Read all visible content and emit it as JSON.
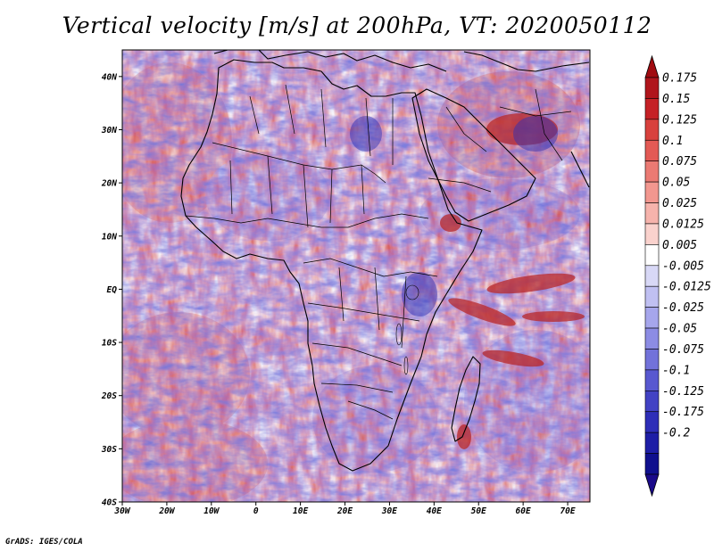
{
  "title": "Vertical velocity [m/s] at 200hPa, VT: 2020050112",
  "credit": "GrADS: IGES/COLA",
  "map": {
    "variable": "Vertical velocity",
    "units": "m/s",
    "level": "200hPa",
    "valid_time": "2020050112",
    "lon_range": [
      -30,
      75
    ],
    "lat_range": [
      -40,
      45
    ],
    "x_ticks": [
      {
        "lon": -30,
        "label": "30W"
      },
      {
        "lon": -20,
        "label": "20W"
      },
      {
        "lon": -10,
        "label": "10W"
      },
      {
        "lon": 0,
        "label": "0"
      },
      {
        "lon": 10,
        "label": "10E"
      },
      {
        "lon": 20,
        "label": "20E"
      },
      {
        "lon": 30,
        "label": "30E"
      },
      {
        "lon": 40,
        "label": "40E"
      },
      {
        "lon": 50,
        "label": "50E"
      },
      {
        "lon": 60,
        "label": "60E"
      },
      {
        "lon": 70,
        "label": "70E"
      }
    ],
    "y_ticks": [
      {
        "lat": 40,
        "label": "40N"
      },
      {
        "lat": 30,
        "label": "30N"
      },
      {
        "lat": 20,
        "label": "20N"
      },
      {
        "lat": 10,
        "label": "10N"
      },
      {
        "lat": 0,
        "label": "EQ"
      },
      {
        "lat": -10,
        "label": "10S"
      },
      {
        "lat": -20,
        "label": "20S"
      },
      {
        "lat": -30,
        "label": "30S"
      },
      {
        "lat": -40,
        "label": "40S"
      }
    ]
  },
  "colorbar": {
    "labels": [
      "0.175",
      "0.15",
      "0.125",
      "0.1",
      "0.075",
      "0.05",
      "0.025",
      "0.0125",
      "0.005",
      "-0.005",
      "-0.0125",
      "-0.025",
      "-0.05",
      "-0.075",
      "-0.1",
      "-0.125",
      "-0.175",
      "-0.2"
    ],
    "colors": [
      "#b0151c",
      "#c52126",
      "#d8413d",
      "#e35a55",
      "#eb7a73",
      "#f2978f",
      "#f6b3ac",
      "#fad2cd",
      "#ffffff",
      "#d8d8f6",
      "#c0c0f2",
      "#a6a6ec",
      "#8c8ce4",
      "#7272da",
      "#5858d0",
      "#4242c4",
      "#2e2eb8",
      "#1e1ea6",
      "#10108e"
    ],
    "top_color": "#a00b10",
    "bottom_color": "#1a0a8a"
  }
}
